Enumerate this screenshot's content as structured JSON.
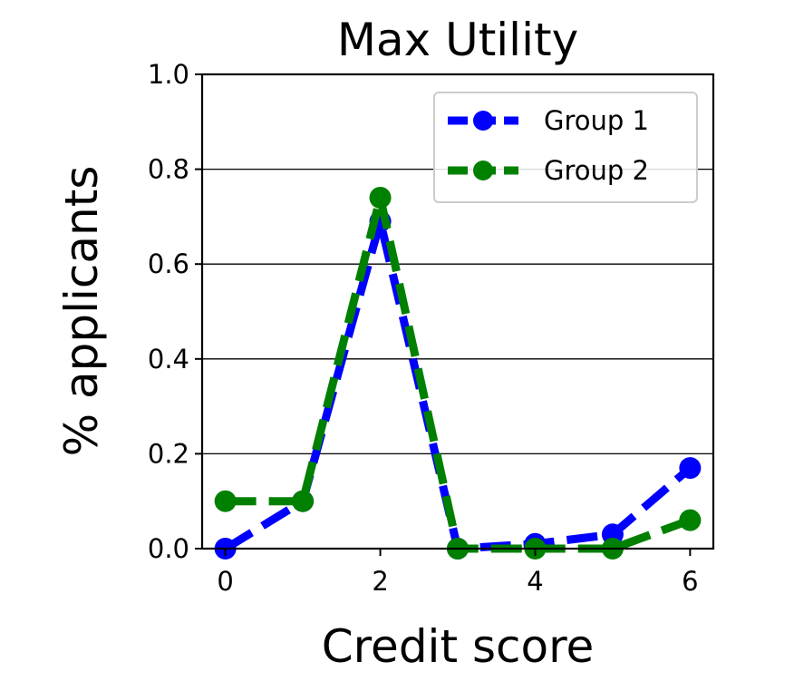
{
  "chart_data": {
    "type": "line",
    "title": "Max Utility",
    "xlabel": "Credit score",
    "ylabel": "% applicants",
    "x": [
      0,
      1,
      2,
      3,
      4,
      5,
      6
    ],
    "xlim": [
      -0.3,
      6.3
    ],
    "ylim": [
      0.0,
      1.0
    ],
    "xticks": [
      0,
      2,
      4,
      6
    ],
    "yticks": [
      0.0,
      0.2,
      0.4,
      0.6,
      0.8,
      1.0
    ],
    "xtick_labels": [
      "0",
      "2",
      "4",
      "6"
    ],
    "ytick_labels": [
      "0.0",
      "0.2",
      "0.4",
      "0.6",
      "0.8",
      "1.0"
    ],
    "grid": "horizontal",
    "legend_position": "top-right",
    "series": [
      {
        "name": "Group 1",
        "color": "#0000ff",
        "values": [
          0.0,
          0.1,
          0.69,
          0.0,
          0.01,
          0.03,
          0.17
        ]
      },
      {
        "name": "Group 2",
        "color": "#008000",
        "values": [
          0.1,
          0.1,
          0.74,
          0.0,
          0.0,
          0.0,
          0.06
        ]
      }
    ]
  }
}
